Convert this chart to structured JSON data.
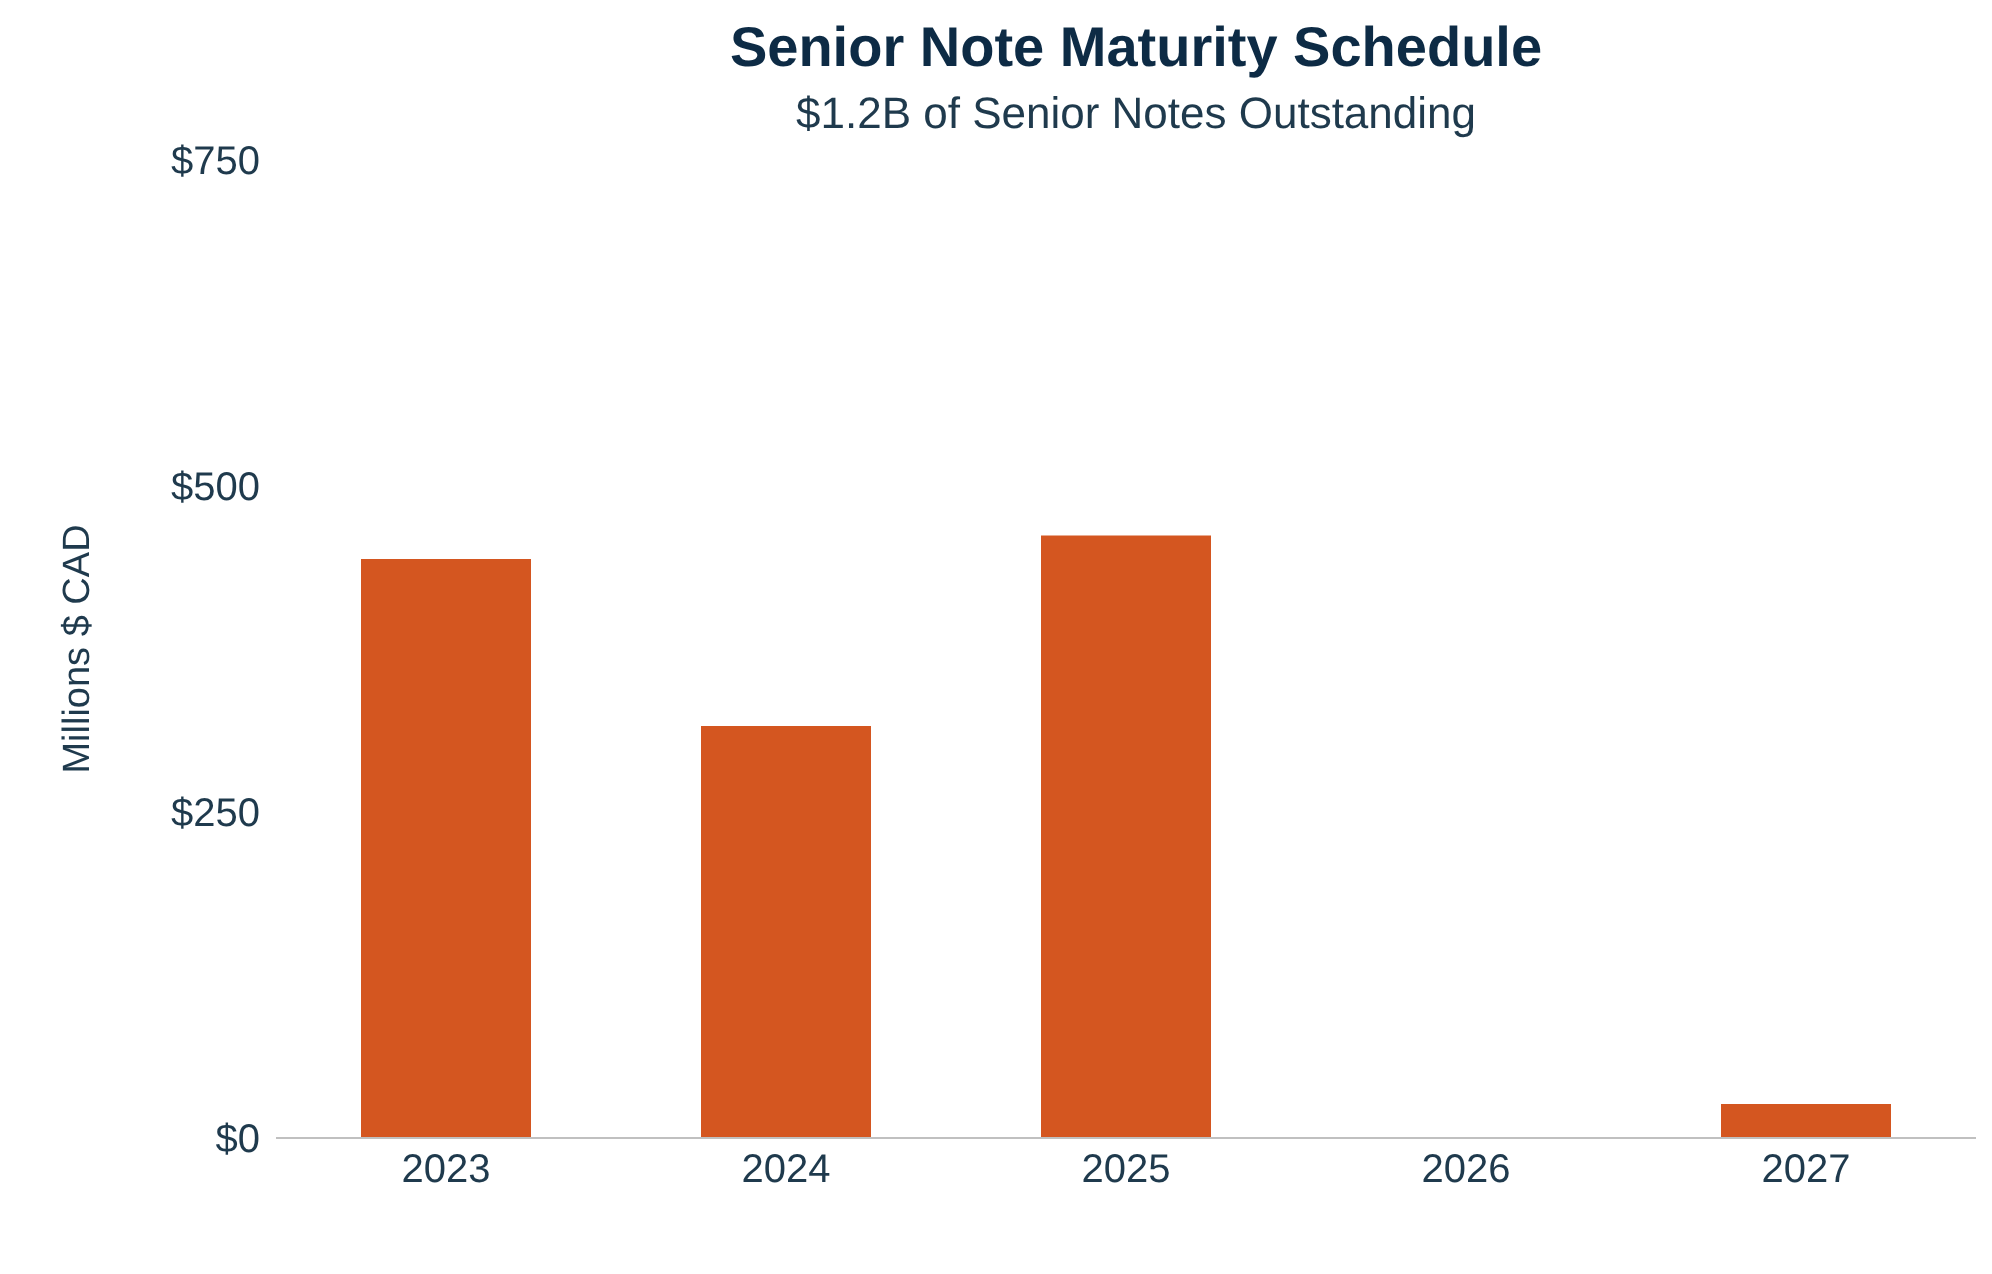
{
  "chart_data": {
    "type": "bar",
    "title": "Senior Note Maturity Schedule",
    "subtitle": "$1.2B of Senior Notes Outstanding",
    "ylabel": "Millions $ CAD",
    "categories": [
      "2023",
      "2024",
      "2025",
      "2026",
      "2027"
    ],
    "values": [
      444,
      316,
      462,
      0,
      26
    ],
    "color": "#d45620",
    "ylim": [
      0,
      750
    ],
    "yticks": [
      {
        "value": 0,
        "label": "$0"
      },
      {
        "value": 250,
        "label": "$250"
      },
      {
        "value": 500,
        "label": "$500"
      },
      {
        "value": 750,
        "label": "$750"
      }
    ],
    "grid": false,
    "legend": false
  }
}
